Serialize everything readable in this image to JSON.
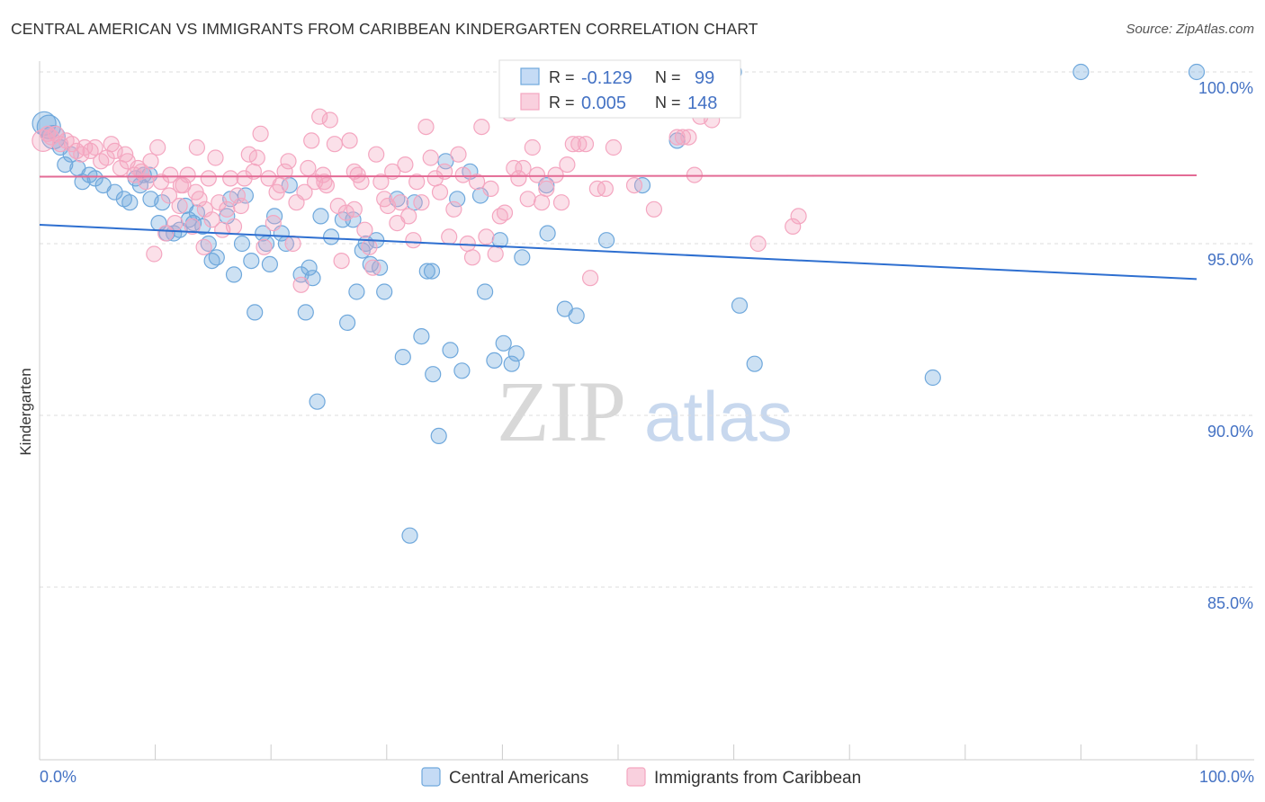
{
  "header": {
    "title": "CENTRAL AMERICAN VS IMMIGRANTS FROM CARIBBEAN KINDERGARTEN CORRELATION CHART",
    "source": "Source: ZipAtlas.com"
  },
  "watermark": {
    "zip": "ZIP",
    "atlas": "atlas"
  },
  "stats_box": {
    "rows": [
      {
        "r_label": "R = ",
        "r_value": "-0.129",
        "n_label": "N = ",
        "n_value": "99",
        "color": "#6FA8DC"
      },
      {
        "r_label": "R = ",
        "r_value": "0.005",
        "n_label": "N = ",
        "n_value": "148",
        "color": "#F4A6C0"
      }
    ]
  },
  "chart_data": {
    "type": "scatter",
    "title": "CENTRAL AMERICAN VS IMMIGRANTS FROM CARIBBEAN KINDERGARTEN CORRELATION CHART",
    "xlabel": "",
    "ylabel": "Kindergarten",
    "xlim": [
      0,
      100
    ],
    "ylim": [
      80.5,
      100.8
    ],
    "x_tick_labels": [
      "0.0%",
      "100.0%"
    ],
    "y_ticks": [
      100,
      95,
      90,
      85
    ],
    "y_tick_labels": [
      "100.0%",
      "95.0%",
      "90.0%",
      "85.0%"
    ],
    "grid": true,
    "legend_position": "bottom-center",
    "series": [
      {
        "name": "Central Americans",
        "color": "#6FA8DC",
        "line_color": "#2E6FD0",
        "trend": {
          "x": [
            0,
            100
          ],
          "y": [
            95.55,
            93.97
          ]
        },
        "points": [
          [
            0.4,
            98.5
          ],
          [
            0.8,
            98.4
          ],
          [
            1.2,
            98.1
          ],
          [
            1.8,
            97.8
          ],
          [
            2.2,
            97.3
          ],
          [
            2.7,
            97.6
          ],
          [
            3.3,
            97.2
          ],
          [
            3.7,
            96.8
          ],
          [
            4.3,
            97.0
          ],
          [
            4.8,
            96.9
          ],
          [
            5.5,
            96.7
          ],
          [
            6.5,
            96.5
          ],
          [
            7.3,
            96.3
          ],
          [
            7.8,
            96.2
          ],
          [
            8.3,
            96.9
          ],
          [
            8.7,
            96.7
          ],
          [
            9.0,
            97.0
          ],
          [
            9.5,
            97.0
          ],
          [
            9.6,
            96.3
          ],
          [
            10.3,
            95.6
          ],
          [
            10.6,
            96.2
          ],
          [
            11.0,
            95.3
          ],
          [
            11.6,
            95.3
          ],
          [
            12.1,
            95.4
          ],
          [
            12.6,
            96.1
          ],
          [
            12.9,
            95.7
          ],
          [
            13.3,
            95.6
          ],
          [
            13.6,
            95.9
          ],
          [
            14.1,
            95.5
          ],
          [
            14.6,
            95.0
          ],
          [
            14.9,
            94.5
          ],
          [
            15.3,
            94.6
          ],
          [
            16.2,
            95.8
          ],
          [
            16.5,
            96.3
          ],
          [
            16.8,
            94.1
          ],
          [
            17.5,
            95.0
          ],
          [
            17.8,
            96.4
          ],
          [
            18.3,
            94.5
          ],
          [
            18.6,
            93.0
          ],
          [
            19.3,
            95.3
          ],
          [
            19.6,
            95.0
          ],
          [
            19.9,
            94.4
          ],
          [
            20.3,
            95.8
          ],
          [
            20.9,
            95.3
          ],
          [
            21.3,
            95.0
          ],
          [
            21.6,
            96.7
          ],
          [
            22.6,
            94.1
          ],
          [
            23.0,
            93.0
          ],
          [
            23.3,
            94.3
          ],
          [
            23.6,
            94.0
          ],
          [
            24.0,
            90.4
          ],
          [
            24.3,
            95.8
          ],
          [
            25.2,
            95.2
          ],
          [
            26.2,
            95.7
          ],
          [
            26.6,
            92.7
          ],
          [
            27.1,
            95.7
          ],
          [
            27.4,
            93.6
          ],
          [
            27.9,
            94.8
          ],
          [
            28.2,
            95.0
          ],
          [
            28.6,
            94.4
          ],
          [
            29.1,
            95.1
          ],
          [
            29.4,
            94.3
          ],
          [
            29.8,
            93.6
          ],
          [
            30.9,
            96.3
          ],
          [
            31.4,
            91.7
          ],
          [
            32.4,
            96.2
          ],
          [
            33.0,
            92.3
          ],
          [
            33.5,
            94.2
          ],
          [
            33.9,
            94.2
          ],
          [
            34.0,
            91.2
          ],
          [
            34.5,
            89.4
          ],
          [
            35.1,
            97.4
          ],
          [
            35.5,
            91.9
          ],
          [
            36.1,
            96.3
          ],
          [
            36.5,
            91.3
          ],
          [
            37.2,
            97.1
          ],
          [
            38.1,
            96.4
          ],
          [
            38.5,
            93.6
          ],
          [
            39.3,
            91.6
          ],
          [
            39.8,
            95.1
          ],
          [
            40.1,
            92.1
          ],
          [
            40.8,
            91.5
          ],
          [
            41.2,
            91.8
          ],
          [
            41.7,
            94.6
          ],
          [
            43.8,
            96.7
          ],
          [
            43.9,
            95.3
          ],
          [
            45.4,
            93.1
          ],
          [
            46.4,
            92.9
          ],
          [
            48.2,
            99.9
          ],
          [
            49.0,
            95.1
          ],
          [
            52.1,
            96.7
          ],
          [
            55.1,
            98.0
          ],
          [
            60.0,
            100.0
          ],
          [
            60.5,
            93.2
          ],
          [
            61.8,
            91.5
          ],
          [
            77.2,
            91.1
          ],
          [
            90.0,
            100.0
          ],
          [
            100.0,
            100.0
          ],
          [
            32.0,
            86.5
          ]
        ]
      },
      {
        "name": "Immigrants from Caribbean",
        "color": "#F4A6C0",
        "line_color": "#E36B95",
        "trend": {
          "x": [
            0,
            100
          ],
          "y": [
            96.95,
            96.99
          ]
        },
        "points": [
          [
            0.3,
            98.0
          ],
          [
            0.7,
            98.2
          ],
          [
            1.0,
            98.1
          ],
          [
            1.4,
            98.2
          ],
          [
            1.8,
            97.9
          ],
          [
            2.3,
            98.0
          ],
          [
            2.8,
            97.9
          ],
          [
            3.2,
            97.7
          ],
          [
            3.6,
            97.6
          ],
          [
            3.9,
            97.8
          ],
          [
            4.4,
            97.7
          ],
          [
            4.8,
            97.8
          ],
          [
            5.3,
            97.4
          ],
          [
            5.8,
            97.5
          ],
          [
            6.2,
            97.9
          ],
          [
            6.5,
            97.7
          ],
          [
            7.0,
            97.2
          ],
          [
            7.4,
            97.6
          ],
          [
            7.6,
            97.4
          ],
          [
            8.2,
            97.0
          ],
          [
            8.5,
            97.2
          ],
          [
            8.8,
            97.1
          ],
          [
            9.2,
            96.8
          ],
          [
            9.6,
            97.4
          ],
          [
            9.9,
            94.7
          ],
          [
            10.2,
            97.8
          ],
          [
            10.5,
            96.8
          ],
          [
            10.9,
            95.3
          ],
          [
            11.2,
            96.4
          ],
          [
            11.3,
            97.0
          ],
          [
            11.7,
            95.6
          ],
          [
            12.1,
            96.1
          ],
          [
            12.4,
            96.7
          ],
          [
            12.8,
            97.0
          ],
          [
            13.2,
            95.5
          ],
          [
            13.5,
            96.5
          ],
          [
            13.8,
            96.3
          ],
          [
            14.3,
            96.0
          ],
          [
            14.6,
            96.9
          ],
          [
            14.9,
            95.7
          ],
          [
            15.2,
            97.5
          ],
          [
            15.5,
            96.2
          ],
          [
            15.8,
            95.4
          ],
          [
            16.2,
            96.0
          ],
          [
            16.5,
            96.9
          ],
          [
            16.8,
            95.5
          ],
          [
            17.1,
            96.4
          ],
          [
            17.4,
            96.1
          ],
          [
            17.7,
            96.9
          ],
          [
            18.1,
            97.6
          ],
          [
            18.5,
            97.1
          ],
          [
            18.8,
            97.5
          ],
          [
            19.1,
            98.2
          ],
          [
            19.4,
            94.9
          ],
          [
            19.8,
            96.9
          ],
          [
            20.2,
            95.6
          ],
          [
            20.5,
            96.5
          ],
          [
            20.8,
            96.7
          ],
          [
            21.2,
            97.1
          ],
          [
            21.5,
            97.4
          ],
          [
            21.9,
            95.0
          ],
          [
            22.2,
            96.2
          ],
          [
            22.6,
            93.8
          ],
          [
            22.9,
            96.5
          ],
          [
            23.2,
            97.2
          ],
          [
            23.5,
            98.0
          ],
          [
            23.8,
            96.8
          ],
          [
            24.2,
            98.7
          ],
          [
            24.5,
            97.0
          ],
          [
            24.8,
            96.7
          ],
          [
            25.1,
            98.6
          ],
          [
            25.5,
            97.9
          ],
          [
            25.8,
            96.1
          ],
          [
            26.1,
            94.5
          ],
          [
            26.5,
            95.9
          ],
          [
            26.8,
            98.0
          ],
          [
            27.2,
            97.1
          ],
          [
            27.5,
            97.0
          ],
          [
            27.8,
            96.8
          ],
          [
            28.1,
            95.4
          ],
          [
            28.5,
            94.9
          ],
          [
            28.8,
            94.3
          ],
          [
            29.1,
            97.6
          ],
          [
            29.5,
            96.8
          ],
          [
            29.8,
            96.3
          ],
          [
            30.1,
            96.1
          ],
          [
            30.5,
            97.1
          ],
          [
            30.9,
            95.6
          ],
          [
            31.2,
            96.2
          ],
          [
            31.6,
            97.3
          ],
          [
            31.9,
            95.8
          ],
          [
            32.3,
            95.1
          ],
          [
            32.6,
            96.8
          ],
          [
            33.0,
            96.2
          ],
          [
            33.4,
            98.4
          ],
          [
            33.8,
            97.5
          ],
          [
            34.2,
            96.9
          ],
          [
            34.6,
            96.5
          ],
          [
            35.0,
            97.1
          ],
          [
            35.4,
            95.2
          ],
          [
            35.8,
            96.0
          ],
          [
            36.2,
            97.6
          ],
          [
            36.6,
            97.0
          ],
          [
            37.0,
            95.0
          ],
          [
            37.4,
            94.6
          ],
          [
            37.8,
            96.8
          ],
          [
            38.2,
            98.4
          ],
          [
            38.6,
            95.2
          ],
          [
            39.0,
            96.6
          ],
          [
            39.4,
            94.7
          ],
          [
            39.8,
            95.8
          ],
          [
            40.2,
            95.9
          ],
          [
            40.6,
            98.8
          ],
          [
            41.0,
            97.2
          ],
          [
            41.4,
            96.9
          ],
          [
            41.8,
            97.2
          ],
          [
            42.2,
            96.3
          ],
          [
            42.6,
            97.8
          ],
          [
            43.0,
            97.0
          ],
          [
            43.4,
            96.2
          ],
          [
            43.8,
            96.6
          ],
          [
            44.2,
            99.9
          ],
          [
            44.6,
            97.0
          ],
          [
            45.1,
            96.2
          ],
          [
            45.6,
            97.3
          ],
          [
            46.1,
            97.9
          ],
          [
            46.6,
            97.9
          ],
          [
            47.2,
            97.9
          ],
          [
            47.6,
            94.0
          ],
          [
            48.2,
            96.6
          ],
          [
            48.9,
            96.6
          ],
          [
            49.6,
            97.8
          ],
          [
            51.4,
            96.7
          ],
          [
            53.1,
            96.0
          ],
          [
            55.1,
            98.1
          ],
          [
            55.6,
            98.1
          ],
          [
            56.1,
            98.1
          ],
          [
            56.6,
            97.0
          ],
          [
            57.1,
            98.7
          ],
          [
            58.1,
            98.6
          ],
          [
            62.1,
            95.0
          ],
          [
            65.1,
            95.5
          ],
          [
            65.6,
            95.8
          ],
          [
            24.6,
            96.8
          ],
          [
            27.2,
            96.0
          ],
          [
            13.6,
            97.8
          ],
          [
            14.2,
            94.9
          ],
          [
            12.2,
            96.7
          ]
        ]
      }
    ]
  }
}
